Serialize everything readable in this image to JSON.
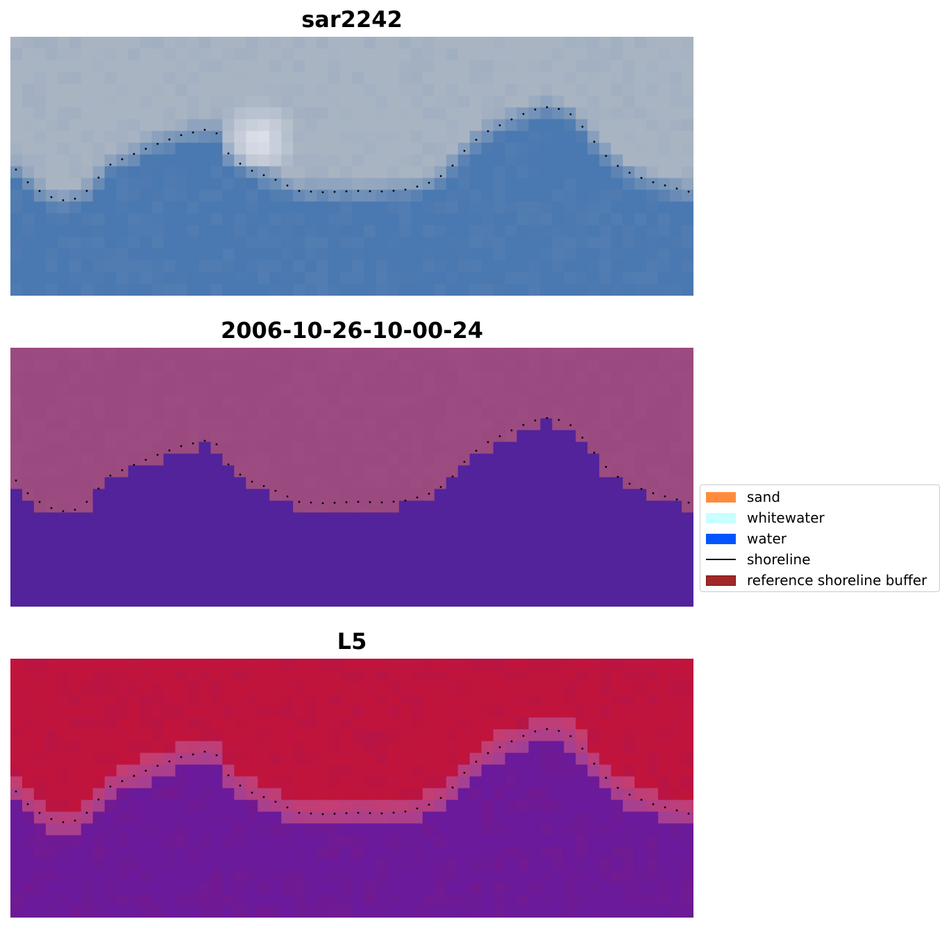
{
  "panels": [
    {
      "title": "sar2242",
      "colormap": "rgb"
    },
    {
      "title": "2006-10-26-10-00-24",
      "colormap": "classified"
    },
    {
      "title": "L5",
      "colormap": "index"
    }
  ],
  "legend": {
    "items": [
      {
        "label": "sand",
        "color": "#ff8c3c",
        "kind": "patch"
      },
      {
        "label": "whitewater",
        "color": "#c8ffff",
        "kind": "patch"
      },
      {
        "label": "water",
        "color": "#0055ff",
        "kind": "patch"
      },
      {
        "label": "shoreline",
        "color": "#000000",
        "kind": "line"
      },
      {
        "label": "reference shoreline buffer",
        "color": "#a02828",
        "kind": "patch"
      }
    ]
  },
  "colors": {
    "rgb_land": "#a9b4c3",
    "rgb_water": "#4a78b0",
    "classified_land": "#9a4a7f",
    "classified_water": "#52239a",
    "index_land": "#c0143c",
    "index_water": "#6a1a9a",
    "shoreline": "#000000"
  }
}
